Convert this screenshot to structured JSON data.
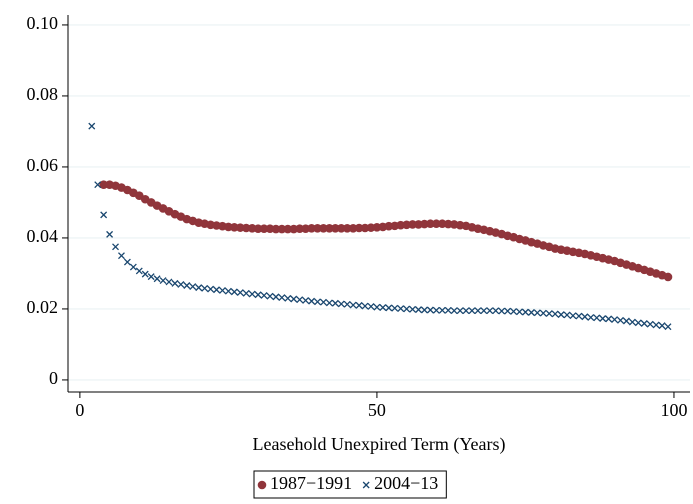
{
  "chart_data": {
    "type": "scatter",
    "xlabel": "Leasehold Unexpired Term (Years)",
    "xlim": [
      -2,
      102.7
    ],
    "ylim": [
      -0.0034,
      0.1028
    ],
    "xticks": [
      0,
      50,
      100
    ],
    "yticks": [
      0,
      0.02,
      0.04,
      0.06,
      0.08,
      {
        "value": 0.1,
        "label": "0.10"
      }
    ],
    "grid": true,
    "series": [
      {
        "name": "1987−1991",
        "color": "#90353b",
        "marker": "circle",
        "x": [
          4,
          5,
          6,
          7,
          8,
          9,
          10,
          11,
          12,
          13,
          14,
          15,
          16,
          17,
          18,
          19,
          20,
          21,
          22,
          23,
          24,
          25,
          26,
          27,
          28,
          29,
          30,
          31,
          32,
          33,
          34,
          35,
          36,
          37,
          38,
          39,
          40,
          41,
          42,
          43,
          44,
          45,
          46,
          47,
          48,
          49,
          50,
          51,
          52,
          53,
          54,
          55,
          56,
          57,
          58,
          59,
          60,
          61,
          62,
          63,
          64,
          65,
          66,
          67,
          68,
          69,
          70,
          71,
          72,
          73,
          74,
          75,
          76,
          77,
          78,
          79,
          80,
          81,
          82,
          83,
          84,
          85,
          86,
          87,
          88,
          89,
          90,
          91,
          92,
          93,
          94,
          95,
          96,
          97,
          98,
          99
        ],
        "values": [
          0.055,
          0.055,
          0.0547,
          0.0542,
          0.0535,
          0.0527,
          0.0519,
          0.0509,
          0.05,
          0.0491,
          0.0483,
          0.0475,
          0.0467,
          0.046,
          0.0453,
          0.0448,
          0.0443,
          0.044,
          0.0437,
          0.0435,
          0.0433,
          0.0431,
          0.043,
          0.0429,
          0.0428,
          0.0427,
          0.0426,
          0.0426,
          0.0426,
          0.0425,
          0.0425,
          0.0425,
          0.0425,
          0.0426,
          0.0426,
          0.0427,
          0.0427,
          0.0427,
          0.0427,
          0.0427,
          0.0427,
          0.0427,
          0.0427,
          0.0428,
          0.0428,
          0.0429,
          0.043,
          0.0431,
          0.0433,
          0.0434,
          0.0436,
          0.0437,
          0.0438,
          0.0438,
          0.0439,
          0.044,
          0.044,
          0.044,
          0.0439,
          0.0438,
          0.0436,
          0.0434,
          0.043,
          0.0426,
          0.0423,
          0.0419,
          0.0415,
          0.0411,
          0.0406,
          0.0402,
          0.0397,
          0.0393,
          0.0388,
          0.0384,
          0.0379,
          0.0375,
          0.037,
          0.0367,
          0.0364,
          0.0361,
          0.0358,
          0.0355,
          0.0351,
          0.0347,
          0.0343,
          0.0339,
          0.0335,
          0.033,
          0.0325,
          0.032,
          0.0315,
          0.031,
          0.0305,
          0.03,
          0.0295,
          0.029
        ]
      },
      {
        "name": "2004−13",
        "color": "#1a476f",
        "marker": "x",
        "x": [
          2,
          3,
          4,
          5,
          6,
          7,
          8,
          9,
          10,
          11,
          12,
          13,
          14,
          15,
          16,
          17,
          18,
          19,
          20,
          21,
          22,
          23,
          24,
          25,
          26,
          27,
          28,
          29,
          30,
          31,
          32,
          33,
          34,
          35,
          36,
          37,
          38,
          39,
          40,
          41,
          42,
          43,
          44,
          45,
          46,
          47,
          48,
          49,
          50,
          51,
          52,
          53,
          54,
          55,
          56,
          57,
          58,
          59,
          60,
          61,
          62,
          63,
          64,
          65,
          66,
          67,
          68,
          69,
          70,
          71,
          72,
          73,
          74,
          75,
          76,
          77,
          78,
          79,
          80,
          81,
          82,
          83,
          84,
          85,
          86,
          87,
          88,
          89,
          90,
          91,
          92,
          93,
          94,
          95,
          96,
          97,
          98,
          99
        ],
        "values": [
          0.0715,
          0.055,
          0.0465,
          0.041,
          0.0375,
          0.035,
          0.0332,
          0.0318,
          0.0307,
          0.0298,
          0.0291,
          0.0285,
          0.028,
          0.0276,
          0.0272,
          0.0269,
          0.0266,
          0.0263,
          0.026,
          0.0258,
          0.0256,
          0.0254,
          0.0252,
          0.025,
          0.0248,
          0.0246,
          0.0244,
          0.0242,
          0.024,
          0.0238,
          0.0236,
          0.0234,
          0.0232,
          0.023,
          0.0228,
          0.0226,
          0.0224,
          0.0222,
          0.022,
          0.0219,
          0.0217,
          0.0216,
          0.0214,
          0.0213,
          0.0211,
          0.021,
          0.0208,
          0.0207,
          0.0205,
          0.0204,
          0.0203,
          0.0202,
          0.0201,
          0.02,
          0.0199,
          0.0198,
          0.0197,
          0.0197,
          0.0196,
          0.0196,
          0.0196,
          0.0195,
          0.0195,
          0.0195,
          0.0195,
          0.0195,
          0.0195,
          0.0195,
          0.0195,
          0.0194,
          0.0194,
          0.0193,
          0.0192,
          0.0191,
          0.019,
          0.0189,
          0.0188,
          0.0187,
          0.0186,
          0.0184,
          0.0183,
          0.0181,
          0.018,
          0.0178,
          0.0176,
          0.0175,
          0.0173,
          0.0172,
          0.017,
          0.0168,
          0.0166,
          0.0163,
          0.0161,
          0.0159,
          0.0157,
          0.0155,
          0.0153,
          0.015
        ]
      }
    ]
  }
}
